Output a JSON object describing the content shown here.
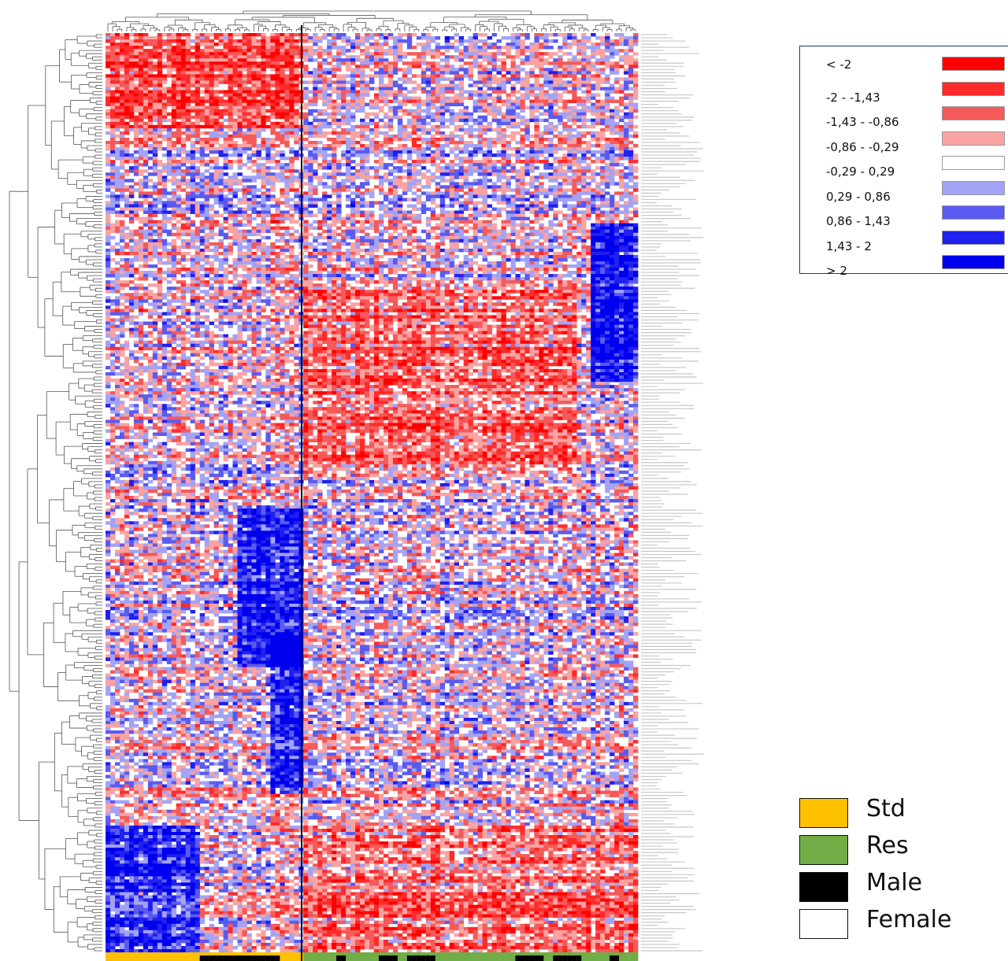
{
  "chart_data": {
    "type": "heatmap",
    "title": "",
    "color_scale": [
      {
        "label": "< -2",
        "color": "#ff0000"
      },
      {
        "label": "-2 - -1,43",
        "color": "#ff2a2a"
      },
      {
        "label": "-1,43 - -0,86",
        "color": "#f55a5a"
      },
      {
        "label": "-0,86 - -0,29",
        "color": "#f9a3a3"
      },
      {
        "label": "-0,29 - 0,29",
        "color": "#ffffff"
      },
      {
        "label": "0,29 - 0,86",
        "color": "#a3a3f5"
      },
      {
        "label": "0,86 - 1,43",
        "color": "#5a5af0"
      },
      {
        "label": "1,43 - 2",
        "color": "#2020f0"
      },
      {
        "label": "> 2",
        "color": "#0000ee"
      }
    ],
    "annotation_legend": [
      {
        "label": "Std",
        "color": "#ffc000"
      },
      {
        "label": "Res",
        "color": "#70ad47"
      },
      {
        "label": "Male",
        "color": "#000000"
      },
      {
        "label": "Female",
        "color": "#ffffff"
      }
    ],
    "annotation_bar": {
      "group": [
        "Std",
        "Std",
        "Std",
        "Std",
        "Std",
        "Std",
        "Std",
        "Std",
        "Std",
        "Std",
        "Std",
        "Std",
        "Std",
        "Std",
        "Std",
        "Std",
        "Std",
        "Std",
        "Std",
        "Std",
        "Std",
        "Std",
        "Std",
        "Std",
        "Std",
        "Std",
        "Std",
        "Std",
        "Std",
        "Std",
        "Std",
        "Std",
        "Std",
        "Std",
        "Std",
        "Std",
        "Std",
        "Std",
        "Std",
        "Std",
        "Std",
        "Std",
        "Res",
        "Res",
        "Res",
        "Res",
        "Res",
        "Res",
        "Res",
        "Res",
        "Res",
        "Res",
        "Res",
        "Res",
        "Res",
        "Res",
        "Res",
        "Res",
        "Res",
        "Res",
        "Res",
        "Res",
        "Res",
        "Res",
        "Res",
        "Res",
        "Res",
        "Res",
        "Res",
        "Res",
        "Res",
        "Res",
        "Res",
        "Res",
        "Res",
        "Res",
        "Res",
        "Res",
        "Res",
        "Res",
        "Res",
        "Res",
        "Res",
        "Res",
        "Res",
        "Res",
        "Res",
        "Res",
        "Res",
        "Res",
        "Res",
        "Res",
        "Res",
        "Res",
        "Res",
        "Res",
        "Res",
        "Res",
        "Res",
        "Res",
        "Res",
        "Res",
        "Res",
        "Res",
        "Res",
        "Res",
        "Res",
        "Res",
        "Res",
        "Res",
        "Res",
        "Res",
        "Res"
      ],
      "sex": [
        "Female",
        "Female",
        "Female",
        "Female",
        "Female",
        "Female",
        "Female",
        "Female",
        "Female",
        "Female",
        "Female",
        "Female",
        "Female",
        "Female",
        "Female",
        "Female",
        "Female",
        "Female",
        "Female",
        "Female",
        "Male",
        "Male",
        "Male",
        "Male",
        "Male",
        "Male",
        "Male",
        "Male",
        "Male",
        "Male",
        "Male",
        "Male",
        "Male",
        "Male",
        "Male",
        "Male",
        "Male",
        "Female",
        "Female",
        "Female",
        "Female",
        "Female",
        "Female",
        "Female",
        "Female",
        "Female",
        "Female",
        "Female",
        "Female",
        "Male",
        "Male",
        "Female",
        "Female",
        "Female",
        "Female",
        "Female",
        "Female",
        "Female",
        "Male",
        "Male",
        "Male",
        "Male",
        "Female",
        "Female",
        "Male",
        "Male",
        "Male",
        "Male",
        "Male",
        "Male",
        "Female",
        "Female",
        "Female",
        "Female",
        "Female",
        "Female",
        "Female",
        "Female",
        "Female",
        "Female",
        "Female",
        "Female",
        "Female",
        "Female",
        "Female",
        "Female",
        "Female",
        "Male",
        "Male",
        "Male",
        "Male",
        "Male",
        "Male",
        "Female",
        "Female",
        "Male",
        "Male",
        "Male",
        "Male",
        "Male",
        "Male",
        "Female",
        "Female",
        "Female",
        "Female",
        "Female",
        "Female",
        "Male",
        "Male",
        "Female",
        "Female",
        "Female",
        "Female",
        "Female",
        "Female"
      ]
    },
    "n_rows": 290,
    "n_cols": 113,
    "seed": 20240611
  }
}
